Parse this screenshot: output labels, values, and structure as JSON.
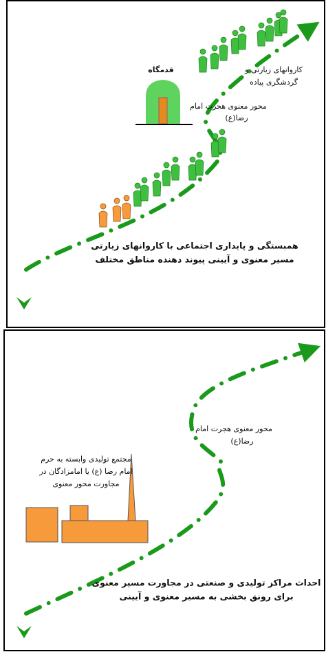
{
  "top_panel": {
    "shrine_label": "قدمگاه",
    "caravans_label": [
      "کاروانهای زیارتی و",
      "گردشگری پیاده"
    ],
    "axis_label": [
      "محور معنوی هجرت امام",
      "رضا(ع)"
    ],
    "caption": [
      "همبستگی و پایداری  اجتماعی با کاروانهای زیارتی",
      "مسیر معنوی و آیینی پیوند دهنده مناطق مختلف"
    ]
  },
  "bottom_panel": {
    "axis_label": [
      "محور معنوی هجرت امام",
      "رضا(ع)"
    ],
    "complex_label": [
      "مجتمع تولیدی وابسته به حرم",
      "امام رضا (ع) یا امامزادگان در",
      "مجاورت محور معنوی"
    ],
    "caption": [
      "احداث مراکز تولیدی و صنعتی در مجاورت مسیر معنوی",
      "برای رونق بخشی به مسیر معنوی و آیینی"
    ]
  }
}
